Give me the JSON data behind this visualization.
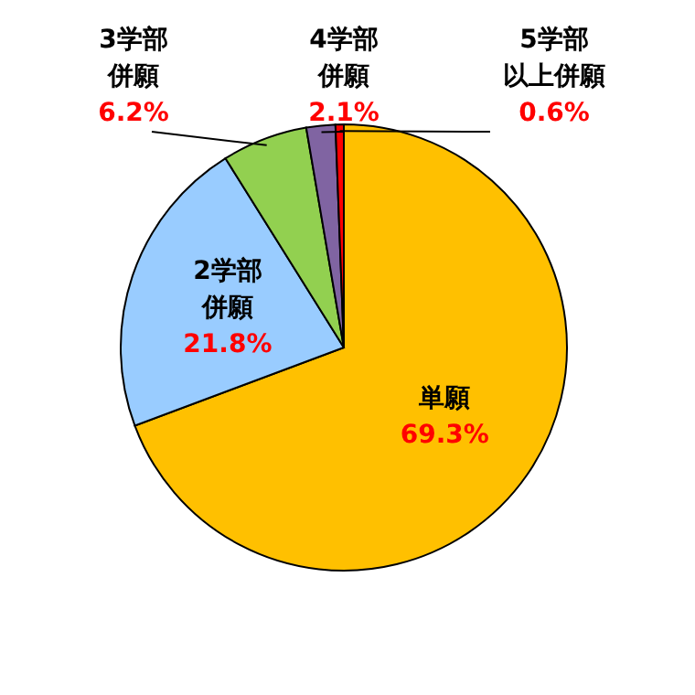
{
  "chart_data": {
    "type": "pie",
    "categories": [
      "単願",
      "2学部併願",
      "3学部併願",
      "4学部併願",
      "5学部以上併願"
    ],
    "values": [
      69.3,
      21.8,
      6.2,
      2.1,
      0.6
    ],
    "value_labels": [
      "69.3%",
      "21.8%",
      "6.2%",
      "2.1%",
      "0.6%"
    ],
    "colors": [
      "#ffc000",
      "#99ccff",
      "#92d050",
      "#8064a2",
      "#ff0000"
    ]
  }
}
